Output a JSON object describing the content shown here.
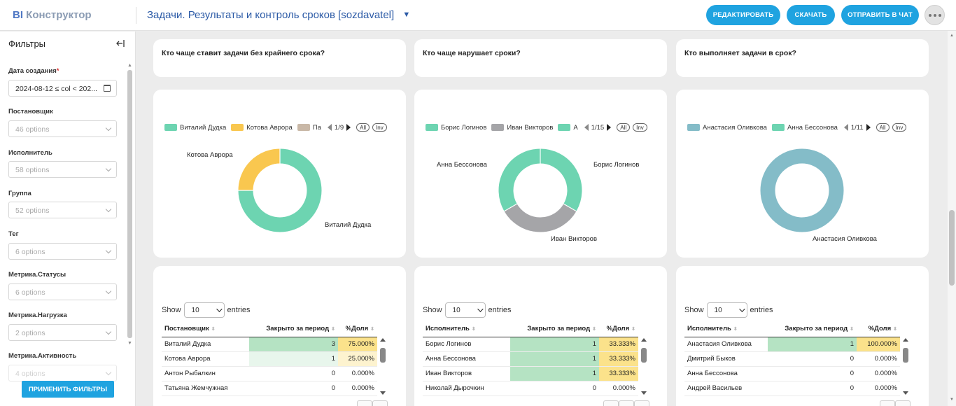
{
  "app": {
    "logo_bi": "BI",
    "logo_text": "Конструктор"
  },
  "header": {
    "title": "Задачи. Результаты и контроль сроков [sozdavatel]",
    "edit_label": "Редактировать",
    "download_label": "Скачать",
    "send_label": "Отправить в чат"
  },
  "sidebar": {
    "title": "Фильтры",
    "apply_label": "Применить фильтры",
    "filters": [
      {
        "label": "Дата создания",
        "required": "*",
        "value": "2024-08-12 ≤ col < 202..."
      },
      {
        "label": "Постановщик",
        "placeholder": "46 options"
      },
      {
        "label": "Исполнитель",
        "placeholder": "58 options"
      },
      {
        "label": "Группа",
        "placeholder": "52 options"
      },
      {
        "label": "Тег",
        "placeholder": "6 options"
      },
      {
        "label": "Метрика.Статусы",
        "placeholder": "6 options"
      },
      {
        "label": "Метрика.Нагрузка",
        "placeholder": "2 options"
      },
      {
        "label": "Метрика.Активность",
        "placeholder": "4 options"
      }
    ]
  },
  "panels": [
    {
      "title": "Кто чаще ставит задачи без крайнего срока?",
      "legend": {
        "items": [
          "Виталий Дудка",
          "Котова Аврора",
          "Па"
        ],
        "page": "1/9",
        "all": "All",
        "inv": "Inv"
      },
      "colors": [
        "#6dd4b1",
        "#f9c74f",
        "#c9b8a7"
      ],
      "labels": [
        "Котова Аврора",
        "Виталий Дудка"
      ],
      "table": {
        "show": "Show",
        "entries": "entries",
        "page_size": "10",
        "headers": [
          "Постановщик",
          "Закрыто за период",
          "%Доля"
        ],
        "rows": [
          {
            "name": "Виталий Дудка",
            "closed": "3",
            "share": "75.000%"
          },
          {
            "name": "Котова Аврора",
            "closed": "1",
            "share": "25.000%"
          },
          {
            "name": "Антон Рыбалкин",
            "closed": "0",
            "share": "0.000%"
          },
          {
            "name": "Татьяна Жемчужная",
            "closed": "0",
            "share": "0.000%"
          }
        ]
      }
    },
    {
      "title": "Кто чаще нарушает сроки?",
      "legend": {
        "items": [
          "Борис Логинов",
          "Иван Викторов",
          "А"
        ],
        "page": "1/15",
        "all": "All",
        "inv": "Inv"
      },
      "colors": [
        "#6dd4b1",
        "#a5a5a8",
        "#6dd4b1"
      ],
      "labels": [
        "Анна Бессонова",
        "Борис Логинов",
        "Иван Викторов"
      ],
      "table": {
        "show": "Show",
        "entries": "entries",
        "page_size": "10",
        "headers": [
          "Исполнитель",
          "Закрыто за период",
          "%Доля"
        ],
        "rows": [
          {
            "name": "Борис Логинов",
            "closed": "1",
            "share": "33.333%"
          },
          {
            "name": "Анна Бессонова",
            "closed": "1",
            "share": "33.333%"
          },
          {
            "name": "Иван Викторов",
            "closed": "1",
            "share": "33.333%"
          },
          {
            "name": "Николай Дырочкин",
            "closed": "0",
            "share": "0.000%"
          }
        ]
      }
    },
    {
      "title": "Кто выполняет задачи в срок?",
      "legend": {
        "items": [
          "Анастасия Оливкова",
          "Анна Бессонова"
        ],
        "page": "1/11",
        "all": "All",
        "inv": "Inv"
      },
      "colors": [
        "#84bcc8",
        "#6dd4b1"
      ],
      "labels": [
        "Анастасия Оливкова"
      ],
      "table": {
        "show": "Show",
        "entries": "entries",
        "page_size": "10",
        "headers": [
          "Исполнитель",
          "Закрыто за период",
          "%Доля"
        ],
        "rows": [
          {
            "name": "Анастасия Оливкова",
            "closed": "1",
            "share": "100.000%"
          },
          {
            "name": "Дмитрий Быков",
            "closed": "0",
            "share": "0.000%"
          },
          {
            "name": "Анна Бессонова",
            "closed": "0",
            "share": "0.000%"
          },
          {
            "name": "Андрей Васильев",
            "closed": "0",
            "share": "0.000%"
          }
        ]
      }
    }
  ],
  "chart_data": [
    {
      "type": "pie",
      "categories": [
        "Виталий Дудка",
        "Котова Аврора"
      ],
      "values": [
        3,
        1
      ]
    },
    {
      "type": "pie",
      "categories": [
        "Борис Логинов",
        "Иван Викторов",
        "Анна Бессонова"
      ],
      "values": [
        1,
        1,
        1
      ]
    },
    {
      "type": "pie",
      "categories": [
        "Анастасия Оливкова"
      ],
      "values": [
        1
      ]
    }
  ]
}
